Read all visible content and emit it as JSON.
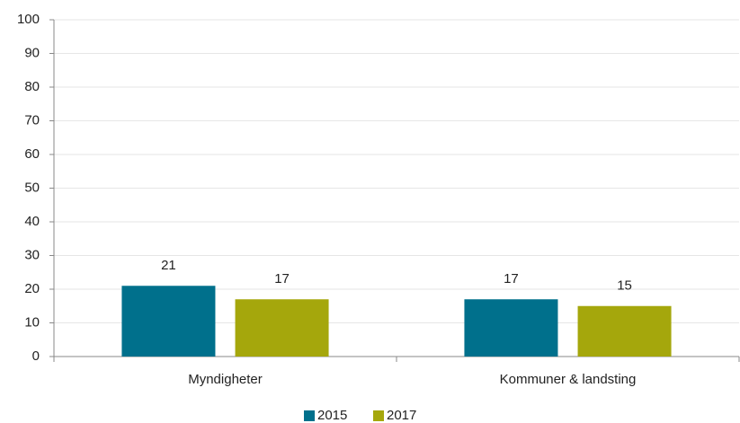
{
  "chart_data": {
    "type": "bar",
    "categories": [
      "Myndigheter",
      "Kommuner & landsting"
    ],
    "series": [
      {
        "name": "2015",
        "color": "#00708c",
        "values": [
          21,
          17
        ]
      },
      {
        "name": "2017",
        "color": "#a5a70c",
        "values": [
          17,
          15
        ]
      }
    ],
    "ylim": [
      0,
      100
    ],
    "yticks": [
      0,
      10,
      20,
      30,
      40,
      50,
      60,
      70,
      80,
      90,
      100
    ],
    "grid": true,
    "legend": "bottom"
  }
}
